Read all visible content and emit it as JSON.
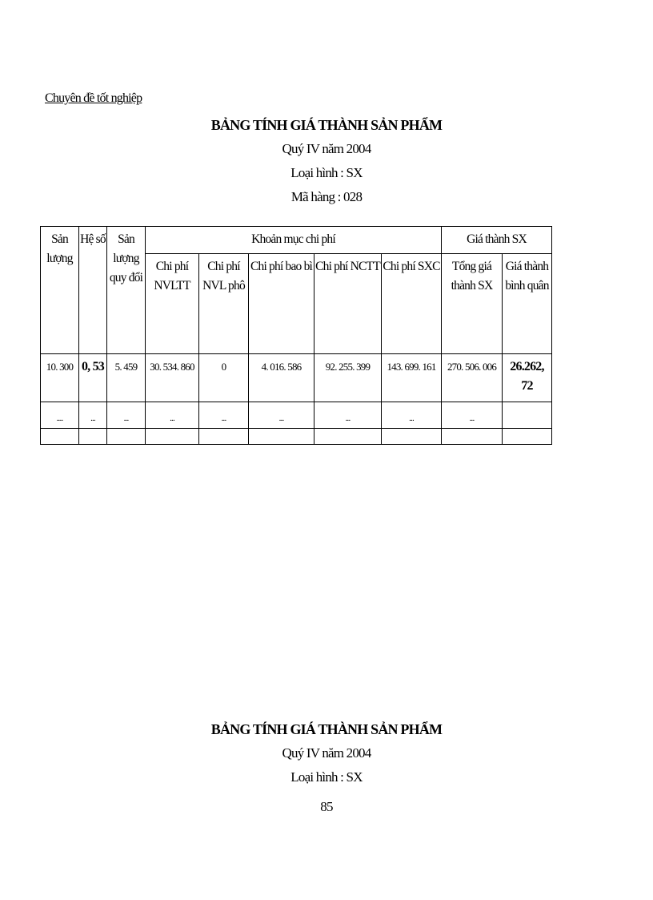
{
  "header": {
    "left": "Chuyên đề tốt nghiệp"
  },
  "section1": {
    "title": "BẢNG TÍNH GIÁ THÀNH SẢN PHẨM",
    "period": "Quý IV năm 2004",
    "type": "Loại hình : SX",
    "code": "Mã hàng : 028"
  },
  "table": {
    "group_headers": [
      "Khoản mục chi phí",
      "Giá thành SX"
    ],
    "columns": [
      "Sản lượng",
      "Hệ số",
      "Sản lượng quy đổi",
      "Chi phí NVLTT",
      "Chi phí NVL phô",
      "Chi phí bao bì",
      "Chi phí NCTT",
      "Chi phí SXC",
      "Tổng giá thành SX",
      "Giá thành bình quân"
    ],
    "rows": [
      [
        "10. 300",
        "0, 53",
        "5. 459",
        "30. 534. 860",
        "0",
        "4. 016. 586",
        "92. 255. 399",
        "143. 699. 161",
        "270. 506. 006",
        "26.262, 72"
      ],
      [
        "....",
        "...",
        "...",
        "...",
        "...",
        "...",
        "...",
        "...",
        "...",
        ""
      ],
      [
        "",
        "",
        "",
        "",
        "",
        "",
        "",
        "",
        "",
        ""
      ]
    ]
  },
  "section2": {
    "title": "BẢNG TÍNH GIÁ THÀNH SẢN PHẨM",
    "period": "Quý IV năm 2004",
    "type": "Loại hình : SX"
  },
  "footer": {
    "page_number": "85"
  }
}
